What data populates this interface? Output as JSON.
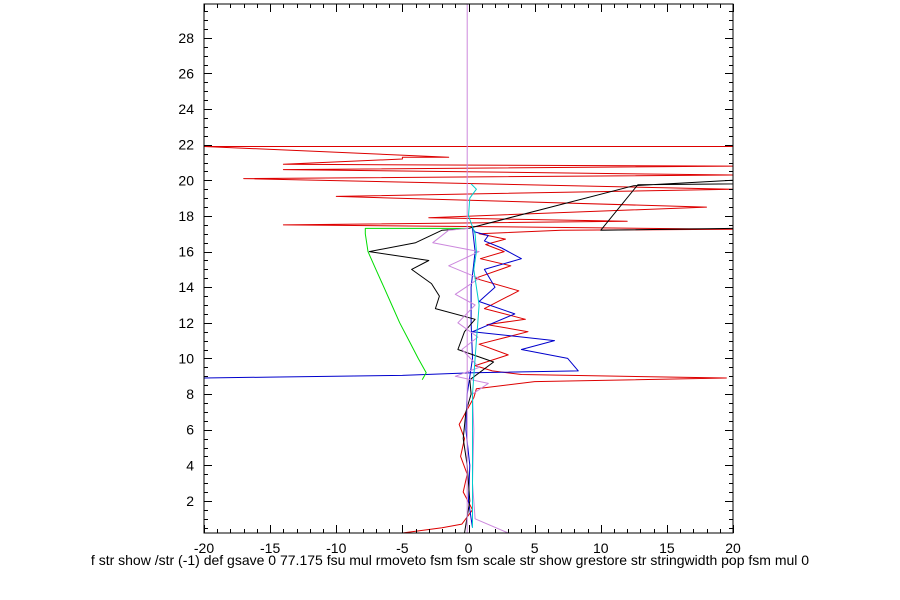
{
  "chart_data": {
    "type": "line",
    "title": "",
    "xlabel": "",
    "ylabel": "",
    "xlim": [
      -20,
      20
    ],
    "ylim": [
      0.2,
      29.9
    ],
    "x_ticks": [
      -20,
      -15,
      -10,
      -5,
      0,
      5,
      10,
      15,
      20
    ],
    "y_ticks": [
      2,
      4,
      6,
      8,
      10,
      12,
      14,
      16,
      18,
      20,
      22,
      24,
      26,
      28
    ],
    "grid": false,
    "legend": "none",
    "series": [
      {
        "color": "#dd0000",
        "points": [
          [
            -5,
            0.2
          ],
          [
            -2,
            0.5
          ],
          [
            -0.5,
            0.7
          ],
          [
            0.3,
            1.5
          ],
          [
            -0.4,
            2.5
          ],
          [
            -0.1,
            3.5
          ],
          [
            -0.6,
            4.5
          ],
          [
            -0.3,
            5.5
          ],
          [
            -0.7,
            6.3
          ],
          [
            -0.2,
            7
          ],
          [
            0.4,
            7.8
          ],
          [
            0.6,
            8.3
          ],
          [
            5,
            8.7
          ],
          [
            19.5,
            8.9
          ],
          [
            4,
            9.1
          ],
          [
            1.8,
            9.3
          ],
          [
            0.5,
            9.6
          ],
          [
            3,
            10.2
          ],
          [
            0.8,
            10.8
          ],
          [
            4.5,
            11.5
          ],
          [
            1.4,
            11.9
          ],
          [
            4.3,
            12.2
          ],
          [
            1.2,
            12.8
          ],
          [
            3.8,
            13.8
          ],
          [
            0.5,
            14.5
          ],
          [
            3.2,
            15.2
          ],
          [
            0.9,
            15.6
          ],
          [
            2.7,
            16
          ],
          [
            1.3,
            16.4
          ],
          [
            2.8,
            16.7
          ],
          [
            0.8,
            17
          ],
          [
            7,
            17.2
          ],
          [
            20,
            17.25
          ],
          [
            1,
            17.4
          ],
          [
            -14,
            17.5
          ],
          [
            12,
            17.7
          ],
          [
            -3,
            17.9
          ],
          [
            18,
            18.5
          ],
          [
            -10,
            19.1
          ],
          [
            20,
            19.5
          ],
          [
            -17,
            20.1
          ],
          [
            20,
            20.3
          ],
          [
            -14,
            20.6
          ],
          [
            20,
            20.8
          ],
          [
            -14,
            20.9
          ],
          [
            -5,
            21.2
          ],
          [
            -5,
            21.3
          ],
          [
            -1.5,
            21.3
          ],
          [
            -20,
            21.9
          ],
          [
            20,
            21.9
          ]
        ]
      },
      {
        "color": "#0000cc",
        "points": [
          [
            -20,
            8.9
          ],
          [
            -15,
            8.95
          ],
          [
            -5,
            9.05
          ],
          [
            0.3,
            9.2
          ],
          [
            8.3,
            9.3
          ],
          [
            7.5,
            10
          ],
          [
            4,
            10.5
          ],
          [
            6.5,
            11
          ],
          [
            0.3,
            11.5
          ],
          [
            3.5,
            12.5
          ],
          [
            0.8,
            13.2
          ],
          [
            2,
            14
          ],
          [
            1.2,
            15
          ],
          [
            4,
            15.6
          ],
          [
            2.5,
            16.2
          ],
          [
            1.2,
            16.6
          ],
          [
            1.5,
            16.9
          ],
          [
            0.5,
            17.1
          ],
          [
            0.3,
            17.3
          ],
          [
            0.5,
            16
          ],
          [
            0.2,
            14
          ],
          [
            0.2,
            12
          ],
          [
            0.3,
            10
          ],
          [
            -0.1,
            8
          ],
          [
            -0.2,
            6
          ],
          [
            0.1,
            4
          ],
          [
            0,
            2
          ],
          [
            0.3,
            0.5
          ]
        ]
      },
      {
        "color": "#000000",
        "points": [
          [
            -0.3,
            0.2
          ],
          [
            0.1,
            2
          ],
          [
            -0.1,
            4
          ],
          [
            -0.4,
            5.5
          ],
          [
            -0.2,
            7
          ],
          [
            0.2,
            8
          ],
          [
            0.1,
            8.8
          ],
          [
            1.9,
            9.8
          ],
          [
            -0.8,
            10.5
          ],
          [
            -0.3,
            11.5
          ],
          [
            0.5,
            12.2
          ],
          [
            -2.5,
            12.8
          ],
          [
            -2.2,
            13.5
          ],
          [
            -2.8,
            14.2
          ],
          [
            -4.3,
            15
          ],
          [
            -3,
            15.5
          ],
          [
            -7.5,
            16
          ],
          [
            -4,
            16.5
          ],
          [
            -2,
            17.2
          ],
          [
            0,
            17.3
          ],
          [
            12.5,
            19.7
          ],
          [
            20,
            20
          ],
          [
            20,
            19.8
          ],
          [
            12.8,
            19.75
          ],
          [
            10,
            17.2
          ],
          [
            20,
            17.3
          ]
        ]
      },
      {
        "color": "#00dd00",
        "points": [
          [
            -3.5,
            8.8
          ],
          [
            -3.2,
            9.2
          ],
          [
            -3.8,
            10
          ],
          [
            -4.5,
            11
          ],
          [
            -5.2,
            12
          ],
          [
            -5.8,
            13
          ],
          [
            -6.4,
            14
          ],
          [
            -7,
            15
          ],
          [
            -7.6,
            16
          ],
          [
            -7.8,
            17
          ],
          [
            -7.8,
            17.3
          ],
          [
            -3,
            17.3
          ],
          [
            0,
            17.3
          ]
        ]
      },
      {
        "color": "#cc88dd",
        "points": [
          [
            -0.1,
            0.2
          ],
          [
            -0.1,
            4
          ],
          [
            -0.1,
            8
          ],
          [
            -0.1,
            12
          ],
          [
            -0.1,
            16
          ],
          [
            -0.1,
            20
          ],
          [
            -0.1,
            24
          ],
          [
            -0.1,
            28
          ],
          [
            -0.1,
            29.9
          ]
        ]
      },
      {
        "color": "#cc88dd",
        "points": [
          [
            3,
            0.2
          ],
          [
            0.5,
            1
          ],
          [
            0.3,
            3
          ],
          [
            0.4,
            6
          ],
          [
            0.3,
            8
          ],
          [
            1.5,
            8.6
          ],
          [
            -1,
            9
          ],
          [
            0.8,
            9.5
          ],
          [
            -0.5,
            10.5
          ],
          [
            0.7,
            11.2
          ],
          [
            -0.8,
            12
          ],
          [
            0.5,
            13
          ],
          [
            -1,
            13.6
          ],
          [
            0.8,
            14.5
          ],
          [
            -1.5,
            15.2
          ],
          [
            0.8,
            16
          ],
          [
            -2.7,
            16.5
          ],
          [
            -1.5,
            17.2
          ],
          [
            0,
            17.3
          ]
        ]
      },
      {
        "color": "#00cccc",
        "points": [
          [
            0.3,
            0.5
          ],
          [
            0.3,
            2
          ],
          [
            0.3,
            4
          ],
          [
            0.3,
            6
          ],
          [
            0.3,
            8
          ],
          [
            0.4,
            9
          ],
          [
            0.5,
            10
          ],
          [
            0.6,
            11
          ],
          [
            0.7,
            12
          ],
          [
            0.8,
            13
          ],
          [
            0.6,
            14
          ],
          [
            0.4,
            15
          ],
          [
            0.6,
            16
          ],
          [
            0.5,
            17
          ],
          [
            0,
            18
          ],
          [
            0.1,
            19
          ],
          [
            0.6,
            19.5
          ],
          [
            0.2,
            19.8
          ]
        ]
      }
    ]
  },
  "caption": "f str show /str (-1) def gsave 0 77.175 fsu mul rmoveto fsm fsm scale str show grestore str stringwidth pop fsm mul 0"
}
